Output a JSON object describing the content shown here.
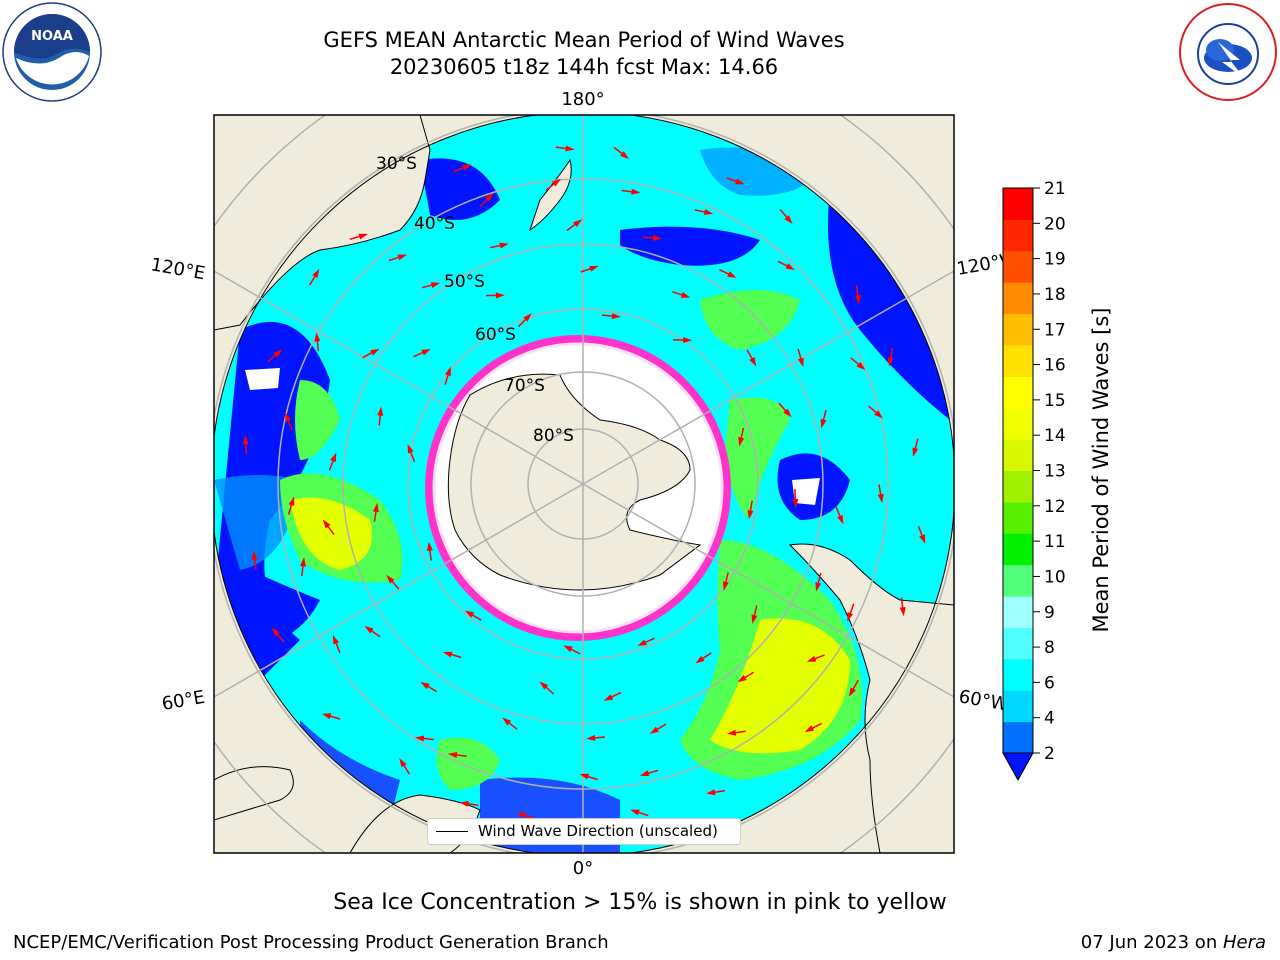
{
  "title": {
    "line1": "GEFS MEAN Antarctic Mean Period of Wind Waves",
    "line2": "20230605 t18z 144h fcst   Max: 14.66"
  },
  "map": {
    "projection": "south-polar-stereographic",
    "longitude_labels": {
      "top": "180°",
      "bottom": "0°",
      "upper_left": "120°E",
      "upper_right": "120°W",
      "lower_left": "60°E",
      "lower_right": "60°W"
    },
    "latitude_labels": [
      "30°S",
      "40°S",
      "50°S",
      "60°S",
      "70°S",
      "80°S"
    ],
    "legend_label": "Wind Wave Direction (unscaled)",
    "colors": {
      "land": "#efecdc",
      "ocean_low": "#0014ff",
      "ocean_mid": "#00ffff",
      "green": "#52ff52",
      "yellow": "#e4ff00",
      "sea_ice_edge": "#ff33cc",
      "arrows": "#ff0000",
      "grid": "#b0b0b0"
    }
  },
  "colorbar": {
    "label": "Mean Period of Wind Waves [s]",
    "ticks": [
      "21",
      "20",
      "19",
      "18",
      "17",
      "16",
      "15",
      "14",
      "13",
      "12",
      "11",
      "10",
      "9",
      "8",
      "6",
      "4",
      "2"
    ],
    "colors_bottom_to_top": [
      "#0070ff",
      "#00d8ff",
      "#00ffff",
      "#52ffff",
      "#a0ffff",
      "#52ff7a",
      "#00f000",
      "#58f000",
      "#a0f000",
      "#d8f800",
      "#f0ff00",
      "#ffff00",
      "#ffe000",
      "#ffbe00",
      "#ff8c00",
      "#ff5000",
      "#ff2800",
      "#ff0000"
    ],
    "extend_color": "#0014ff"
  },
  "footnote": "Sea Ice Concentration > 15% is shown in pink to yellow",
  "credit_left": "NCEP/EMC/Verification Post Processing Product Generation Branch",
  "credit_right": {
    "date": "07 Jun 2023 on ",
    "machine": "Hera"
  }
}
